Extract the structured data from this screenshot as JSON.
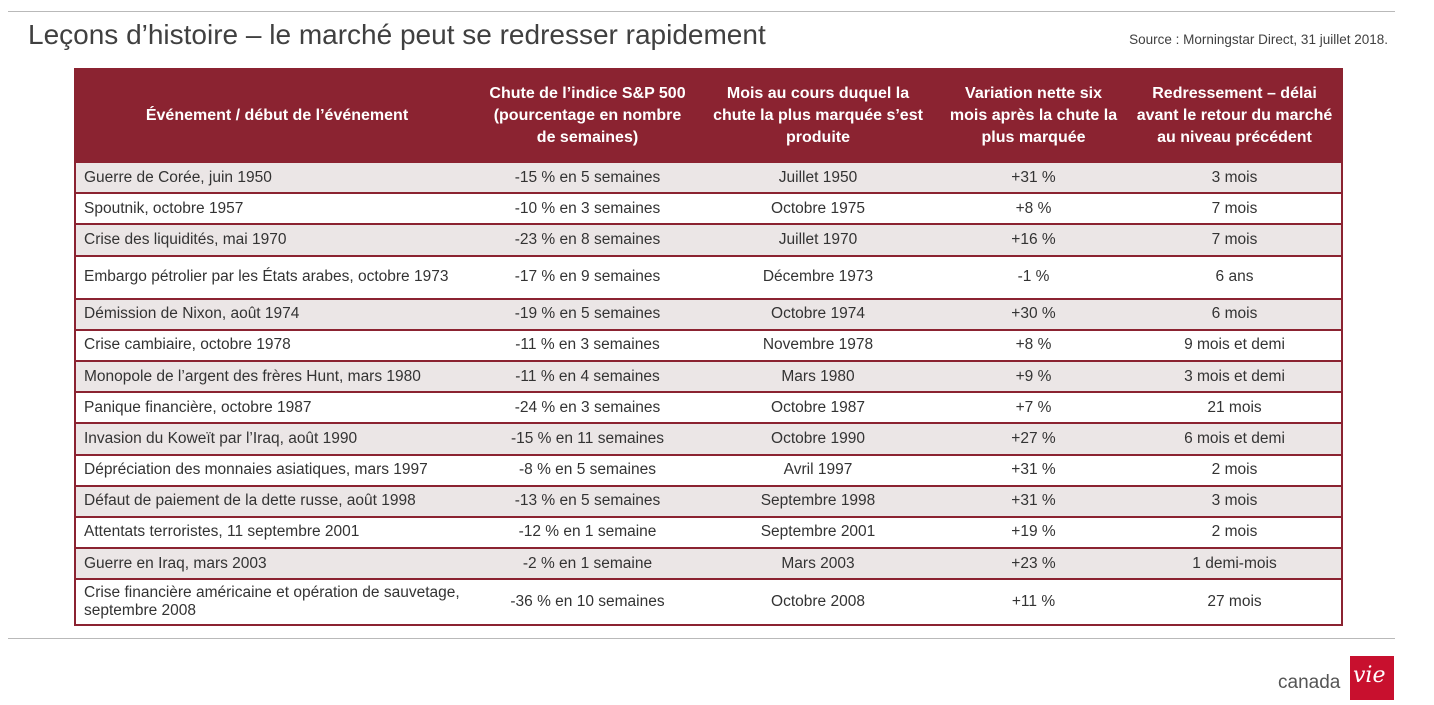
{
  "header": {
    "title": "Leçons d’histoire – le marché peut se redresser rapidement",
    "source": "Source : Morningstar Direct, 31 juillet 2018."
  },
  "table": {
    "columns": [
      "Événement / début de l’événement",
      "Chute de l’indice S&P 500 (pourcentage en nombre de semaines)",
      "Mois au cours duquel la chute la plus marquée s’est produite",
      "Variation nette six mois après la chute la plus marquée",
      "Redressement – délai avant le retour du marché au niveau précédent"
    ],
    "rows": [
      [
        "Guerre de Corée, juin 1950",
        "-15 % en 5 semaines",
        "Juillet 1950",
        "+31 %",
        "3 mois"
      ],
      [
        "Spoutnik, octobre 1957",
        "-10 % en 3 semaines",
        "Octobre 1975",
        "+8 %",
        "7 mois"
      ],
      [
        "Crise des liquidités, mai 1970",
        "-23 % en 8 semaines",
        "Juillet 1970",
        "+16 %",
        "7 mois"
      ],
      [
        "Embargo pétrolier par les États arabes, octobre 1973",
        "-17 % en 9 semaines",
        "Décembre 1973",
        "-1 %",
        "6 ans"
      ],
      [
        "Démission de Nixon, août 1974",
        "-19 % en 5 semaines",
        "Octobre 1974",
        "+30 %",
        "6 mois"
      ],
      [
        "Crise cambiaire, octobre 1978",
        "-11 % en 3 semaines",
        "Novembre 1978",
        "+8 %",
        "9 mois et demi"
      ],
      [
        "Monopole de l’argent des frères Hunt, mars 1980",
        "-11 % en 4 semaines",
        "Mars 1980",
        "+9 %",
        "3 mois et demi"
      ],
      [
        "Panique financière, octobre 1987",
        "-24 % en 3 semaines",
        "Octobre 1987",
        "+7 %",
        "21 mois"
      ],
      [
        "Invasion du Koweït par l’Iraq, août 1990",
        "-15 % en 11 semaines",
        "Octobre 1990",
        "+27 %",
        "6 mois et demi"
      ],
      [
        "Dépréciation des monnaies asiatiques, mars 1997",
        "-8 % en 5 semaines",
        "Avril 1997",
        "+31 %",
        "2 mois"
      ],
      [
        "Défaut de paiement de la dette russe, août 1998",
        "-13 % en 5 semaines",
        "Septembre 1998",
        "+31 %",
        "3 mois"
      ],
      [
        "Attentats terroristes, 11 septembre 2001",
        "-12 % en 1 semaine",
        "Septembre 2001",
        "+19 %",
        "2 mois"
      ],
      [
        "Guerre en Iraq, mars 2003",
        "-2 % en 1 semaine",
        "Mars 2003",
        "+23 %",
        "1 demi-mois"
      ],
      [
        "Crise financière américaine et opération de sauvetage, septembre 2008",
        "-36 % en 10 semaines",
        "Octobre 2008",
        "+11 %",
        "27 mois"
      ]
    ]
  },
  "logo": {
    "text": "canada",
    "box_text": "vie"
  },
  "colors": {
    "header_bg": "#8b2331",
    "stripe_bg": "#ebe6e6",
    "logo_red": "#c8102e"
  }
}
